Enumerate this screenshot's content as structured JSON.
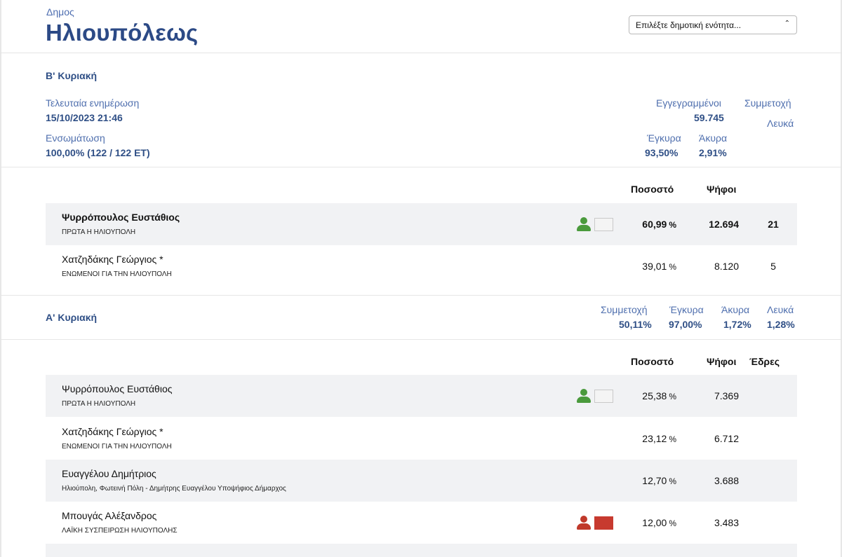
{
  "header": {
    "muni_label": "Δημος",
    "muni_name": "Ηλιουπόλεως",
    "select_placeholder": "Επιλέξτε δημοτική ενότητα..."
  },
  "round_b": {
    "title": "Β' Κυριακή",
    "last_update_label": "Τελευταία ενημέρωση",
    "last_update_value": "15/10/2023 21:46",
    "integration_label": "Ενσωμάτωση",
    "integration_value": "100,00% (122 / 122 ΕΤ)",
    "registered_label": "Εγγεγραμμένοι",
    "registered_value": "59.745",
    "turnout_label": "Συμμετοχή",
    "blank_label": "Λευκά",
    "valid_label": "Έγκυρα",
    "valid_value": "93,50%",
    "invalid_label": "Άκυρα",
    "invalid_value": "2,91%",
    "columns": {
      "percent": "Ποσοστό",
      "votes": "Ψήφοι"
    },
    "candidates": [
      {
        "name": "Ψυρρόπουλος Ευστάθιος",
        "party": "ΠΡΩΤΑ Η ΗΛΙΟΥΠΟΛΗ",
        "percent": "60,99",
        "votes": "12.694",
        "seats": "21",
        "icon": "person-icon",
        "icon_color": "#4a9a3c",
        "flag_color": "#f4f4f4",
        "winner": true
      },
      {
        "name": "Χατζηδάκης Γεώργιος *",
        "party": "ΕΝΩΜΕΝΟΙ ΓΙΑ ΤΗΝ ΗΛΙΟΥΠΟΛΗ",
        "percent": "39,01",
        "votes": "8.120",
        "seats": "5",
        "winner": false
      }
    ],
    "percent_sign": "%"
  },
  "round_a": {
    "title": "Α' Κυριακή",
    "turnout_label": "Συμμετοχή",
    "turnout_value": "50,11%",
    "valid_label": "Έγκυρα",
    "valid_value": "97,00%",
    "invalid_label": "Άκυρα",
    "invalid_value": "1,72%",
    "blank_label": "Λευκά",
    "blank_value": "1,28%",
    "columns": {
      "percent": "Ποσοστό",
      "votes": "Ψήφοι",
      "seats": "Έδρες"
    },
    "candidates": [
      {
        "name": "Ψυρρόπουλος Ευστάθιος",
        "party": "ΠΡΩΤΑ Η ΗΛΙΟΥΠΟΛΗ",
        "percent": "25,38",
        "votes": "7.369",
        "icon": "person-icon",
        "icon_color": "#4a9a3c",
        "flag_color": "#f4f4f4"
      },
      {
        "name": "Χατζηδάκης Γεώργιος *",
        "party": "ΕΝΩΜΕΝΟΙ ΓΙΑ ΤΗΝ ΗΛΙΟΥΠΟΛΗ",
        "percent": "23,12",
        "votes": "6.712"
      },
      {
        "name": "Ευαγγέλου Δημήτριος",
        "party": "Ηλιούπολη, Φωτεινή Πόλη - Δημήτρης Ευαγγέλου Υποψήφιος Δήμαρχος",
        "percent": "12,70",
        "votes": "3.688"
      },
      {
        "name": "Μπουγάς Αλέξανδρος",
        "party": "ΛΑΪΚΗ ΣΥΣΠΕΙΡΩΣΗ ΗΛΙΟΥΠΟΛΗΣ",
        "percent": "12,00",
        "votes": "3.483",
        "icon": "person-icon",
        "icon_color": "#c0392b",
        "flag_color": "#c73a2f"
      }
    ],
    "percent_sign": "%"
  }
}
